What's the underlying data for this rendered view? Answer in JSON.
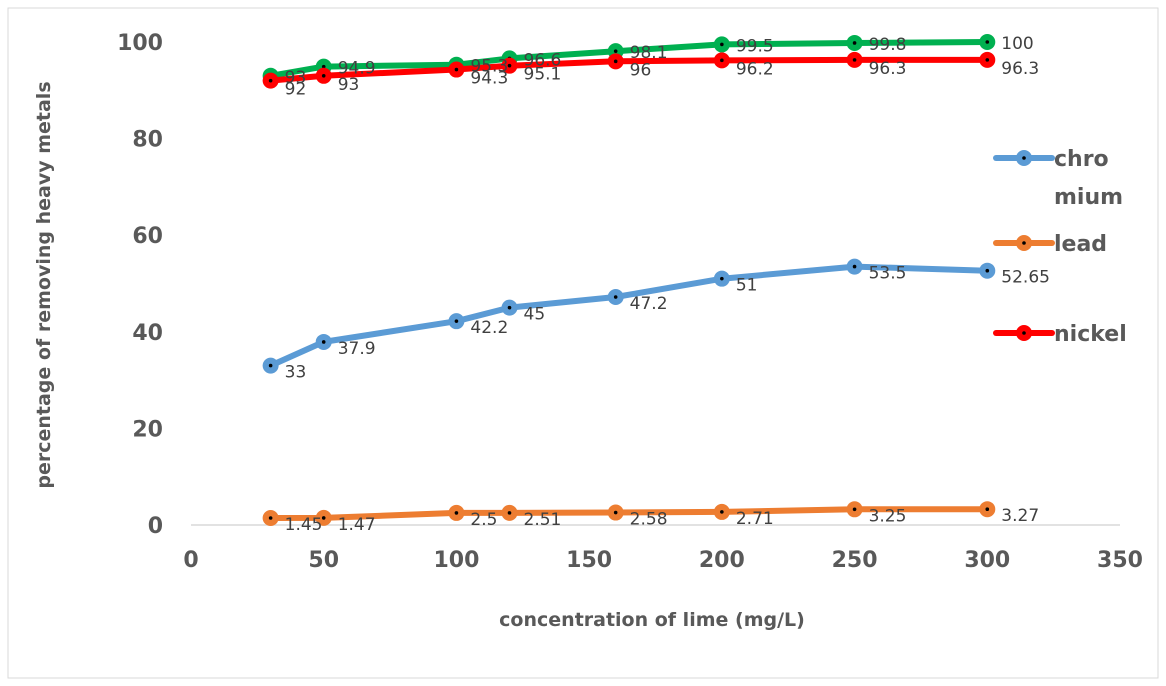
{
  "chart_data": {
    "type": "line",
    "title": "",
    "xlabel": "concentration of lime (mg/L)",
    "ylabel": "percentage of removing heavy metals",
    "xlim": [
      0,
      350
    ],
    "ylim": [
      0,
      100
    ],
    "x_ticks": [
      "0",
      "50",
      "100",
      "150",
      "200",
      "250",
      "300",
      "350"
    ],
    "y_ticks": [
      "0",
      "20",
      "40",
      "60",
      "80",
      "100"
    ],
    "grid": false,
    "legend_position": "right",
    "x": [
      30,
      50,
      100,
      120,
      160,
      200,
      250,
      300
    ],
    "series": [
      {
        "name": "chromium",
        "legend_lines": [
          "chro",
          "mium"
        ],
        "color": "#5B9BD5",
        "values": [
          33,
          37.9,
          42.2,
          45,
          47.2,
          51,
          53.5,
          52.65
        ],
        "labels": [
          "33",
          "37.9",
          "42.2",
          "45",
          "47.2",
          "51",
          "53.5",
          "52.65"
        ],
        "in_legend": true
      },
      {
        "name": "lead",
        "legend_lines": [
          "lead"
        ],
        "color": "#ED7D31",
        "values": [
          1.45,
          1.47,
          2.5,
          2.51,
          2.58,
          2.71,
          3.25,
          3.27
        ],
        "labels": [
          "1.45",
          "1.47",
          "2.5",
          "2.51",
          "2.58",
          "2.71",
          "3.25",
          "3.27"
        ],
        "in_legend": true
      },
      {
        "name": "",
        "legend_lines": [],
        "color": "#00B050",
        "values": [
          93,
          94.9,
          95.3,
          96.6,
          98.1,
          99.5,
          99.8,
          100
        ],
        "labels": [
          "93",
          "94.9",
          "95.3",
          "96.6",
          "98.1",
          "99.5",
          "99.8",
          "100"
        ],
        "in_legend": false
      },
      {
        "name": "nickel",
        "legend_lines": [
          "nickel"
        ],
        "color": "#FF0000",
        "values": [
          92,
          93,
          94.3,
          95.1,
          96,
          96.2,
          96.3,
          96.3
        ],
        "labels": [
          "92",
          "93",
          "94.3",
          "95.1",
          "96",
          "96.2",
          "96.3",
          "96.3"
        ],
        "in_legend": true
      }
    ]
  }
}
